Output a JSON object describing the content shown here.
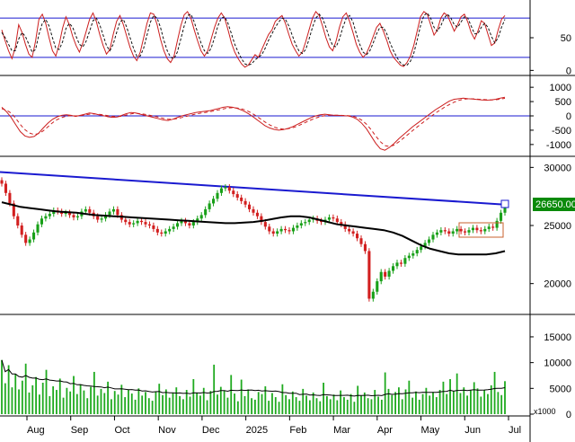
{
  "chart_data": [
    {
      "type": "line",
      "panel": "stochastic",
      "y_ticks": [
        "50",
        "0"
      ],
      "reference_lines": [
        80,
        20
      ],
      "ylim": [
        -5,
        105
      ],
      "series": [
        {
          "values": [
            62,
            45,
            30,
            18,
            35,
            70,
            58,
            40,
            25,
            20,
            45,
            78,
            86,
            72,
            50,
            30,
            22,
            40,
            65,
            82,
            70,
            52,
            38,
            28,
            42,
            60,
            78,
            88,
            75,
            55,
            38,
            25,
            32,
            55,
            75,
            84,
            70,
            52,
            35,
            22,
            15,
            28,
            50,
            72,
            88,
            86,
            70,
            48,
            30,
            18,
            12,
            22,
            45,
            68,
            85,
            90,
            80,
            62,
            45,
            30,
            22,
            30,
            48,
            66,
            80,
            88,
            80,
            62,
            42,
            28,
            18,
            10,
            5,
            8,
            16,
            24,
            20,
            32,
            44,
            55,
            62,
            75,
            80,
            84,
            72,
            55,
            40,
            30,
            22,
            28,
            44,
            62,
            80,
            90,
            84,
            68,
            50,
            36,
            30,
            45,
            66,
            82,
            88,
            75,
            58,
            40,
            28,
            20,
            26,
            38,
            52,
            66,
            72,
            60,
            46,
            30,
            20,
            14,
            8,
            6,
            12,
            22,
            38,
            60,
            82,
            90,
            86,
            70,
            54,
            62,
            80,
            88,
            84,
            72,
            60,
            70,
            82,
            86,
            74,
            58,
            48,
            60,
            76,
            72,
            55,
            38,
            42,
            62,
            78,
            84
          ]
        },
        {
          "values": [
            58,
            50,
            40,
            30,
            30,
            48,
            58,
            52,
            40,
            28,
            32,
            55,
            72,
            78,
            68,
            50,
            34,
            32,
            44,
            64,
            72,
            66,
            52,
            40,
            36,
            45,
            60,
            76,
            80,
            70,
            54,
            38,
            30,
            40,
            58,
            74,
            78,
            66,
            50,
            34,
            22,
            22,
            34,
            54,
            74,
            84,
            80,
            66,
            46,
            30,
            20,
            18,
            28,
            48,
            68,
            84,
            86,
            74,
            58,
            42,
            30,
            26,
            34,
            50,
            68,
            80,
            82,
            72,
            56,
            40,
            28,
            18,
            10,
            8,
            10,
            16,
            20,
            24,
            34,
            46,
            56,
            66,
            74,
            80,
            78,
            68,
            54,
            40,
            30,
            26,
            32,
            48,
            66,
            80,
            86,
            80,
            66,
            50,
            38,
            36,
            48,
            66,
            80,
            84,
            74,
            56,
            40,
            28,
            24,
            30,
            42,
            56,
            66,
            66,
            56,
            42,
            30,
            20,
            12,
            8,
            8,
            14,
            26,
            46,
            68,
            84,
            88,
            80,
            66,
            60,
            68,
            80,
            86,
            80,
            70,
            66,
            74,
            82,
            80,
            68,
            56,
            56,
            66,
            72,
            66,
            52,
            42,
            50,
            66,
            78
          ]
        }
      ]
    },
    {
      "type": "line",
      "panel": "macd",
      "y_ticks": [
        "1000",
        "500",
        "0",
        "-500",
        "-1000"
      ],
      "reference_lines": [
        0
      ],
      "ylim": [
        -1350,
        1350
      ],
      "series": [
        {
          "values": [
            300,
            150,
            -50,
            -300,
            -550,
            -700,
            -750,
            -720,
            -600,
            -420,
            -250,
            -120,
            -30,
            20,
            40,
            20,
            -20,
            20,
            60,
            100,
            80,
            40,
            10,
            -30,
            -50,
            -40,
            20,
            80,
            120,
            100,
            60,
            20,
            -20,
            -60,
            -100,
            -140,
            -160,
            -120,
            -60,
            0,
            40,
            80,
            120,
            140,
            160,
            180,
            220,
            260,
            300,
            320,
            300,
            260,
            200,
            120,
            20,
            -100,
            -220,
            -340,
            -420,
            -470,
            -500,
            -480,
            -440,
            -380,
            -300,
            -220,
            -140,
            -60,
            0,
            40,
            60,
            40,
            20,
            20,
            10,
            0,
            -40,
            -120,
            -260,
            -450,
            -700,
            -950,
            -1150,
            -1200,
            -1100,
            -960,
            -800,
            -660,
            -520,
            -380,
            -260,
            -140,
            -20,
            100,
            220,
            320,
            420,
            520,
            580,
            600,
            620,
            600,
            590,
            570,
            560,
            550,
            560,
            580,
            620,
            650
          ]
        },
        {
          "values": [
            250,
            200,
            100,
            -80,
            -300,
            -480,
            -600,
            -650,
            -620,
            -520,
            -380,
            -240,
            -130,
            -60,
            -10,
            10,
            0,
            5,
            30,
            60,
            70,
            55,
            35,
            10,
            -15,
            -30,
            -10,
            30,
            70,
            90,
            80,
            55,
            25,
            -10,
            -45,
            -85,
            -115,
            -120,
            -95,
            -55,
            -15,
            25,
            65,
            95,
            120,
            145,
            175,
            210,
            245,
            275,
            285,
            275,
            245,
            190,
            110,
            10,
            -100,
            -210,
            -310,
            -390,
            -440,
            -460,
            -450,
            -415,
            -360,
            -290,
            -215,
            -140,
            -75,
            -25,
            10,
            25,
            25,
            22,
            16,
            8,
            -10,
            -60,
            -150,
            -290,
            -480,
            -700,
            -900,
            -1040,
            -1070,
            -1020,
            -910,
            -780,
            -650,
            -515,
            -385,
            -260,
            -135,
            -15,
            100,
            210,
            310,
            400,
            480,
            540,
            580,
            595,
            595,
            585,
            575,
            565,
            560,
            565,
            585,
            615
          ]
        }
      ]
    },
    {
      "type": "candlestick",
      "panel": "price",
      "x_ticks": [
        "Aug",
        "Sep",
        "Oct",
        "Nov",
        "Dec",
        "2025",
        "Feb",
        "Mar",
        "Apr",
        "May",
        "Jun",
        "Jul"
      ],
      "y_ticks": [
        "30000",
        "25000",
        "20000"
      ],
      "last_price_label": "26650.00",
      "ylim": [
        17500,
        30800
      ],
      "trend_line": [
        29600,
        26800
      ],
      "close": [
        28600,
        27800,
        26900,
        25800,
        25000,
        24200,
        23500,
        23800,
        24400,
        25100,
        25600,
        25800,
        26000,
        26300,
        26200,
        26000,
        26100,
        25900,
        25700,
        25800,
        26200,
        26400,
        26100,
        25800,
        25500,
        25600,
        25900,
        26200,
        26400,
        25900,
        25500,
        25300,
        25100,
        25200,
        25400,
        25300,
        25100,
        25000,
        24700,
        24400,
        24300,
        24500,
        24700,
        24900,
        25200,
        25400,
        25200,
        25000,
        25300,
        25600,
        25900,
        26400,
        26900,
        27300,
        27800,
        28200,
        28300,
        28000,
        27700,
        27400,
        27100,
        26800,
        26400,
        26100,
        25800,
        25300,
        24900,
        24500,
        24300,
        24500,
        24700,
        24600,
        24500,
        24800,
        25000,
        25200,
        25300,
        25500,
        25600,
        25400,
        25300,
        25500,
        25700,
        25600,
        25300,
        25100,
        24700,
        24500,
        24300,
        23900,
        23400,
        22800,
        18700,
        19300,
        20200,
        21000,
        20600,
        21100,
        21500,
        21800,
        21700,
        22200,
        22400,
        22600,
        22900,
        23200,
        23500,
        23800,
        24200,
        24400,
        24600,
        24500,
        24300,
        24500,
        24700,
        24500,
        24400,
        24600,
        24800,
        24600,
        24500,
        24700,
        24900,
        24800,
        25400,
        26100,
        26650
      ],
      "moving_average": [
        27000,
        26800,
        26600,
        26500,
        26400,
        26300,
        26200,
        26150,
        26100,
        26000,
        25900,
        25850,
        25800,
        25750,
        25700,
        25650,
        25600,
        25550,
        25500,
        25450,
        25400,
        25350,
        25300,
        25250,
        25200,
        25200,
        25250,
        25300,
        25400,
        25550,
        25700,
        25800,
        25800,
        25700,
        25500,
        25300,
        25100,
        25000,
        24900,
        24800,
        24700,
        24600,
        24400,
        24100,
        23700,
        23300,
        23000,
        22800,
        22600,
        22500,
        22500,
        22500,
        22500,
        22600,
        22800
      ]
    },
    {
      "type": "bar",
      "panel": "volume",
      "y_ticks": [
        "15000",
        "10000",
        "5000",
        "0"
      ],
      "unit_label": "x1000",
      "ylim": [
        0,
        19000
      ],
      "values": [
        10500,
        6000,
        9500,
        5200,
        7800,
        4800,
        6500,
        9800,
        4200,
        5600,
        7200,
        3800,
        6100,
        8600,
        3500,
        5400,
        4700,
        6900,
        3200,
        5100,
        4400,
        7400,
        3900,
        5800,
        4600,
        3100,
        5300,
        8200,
        3600,
        4900,
        4100,
        6300,
        2900,
        4500,
        3800,
        5700,
        3300,
        4700,
        4000,
        2800,
        5000,
        3600,
        4300,
        3100,
        2600,
        4400,
        5900,
        3700,
        4800,
        3200,
        4100,
        5200,
        3500,
        2900,
        4700,
        3400,
        6800,
        4200,
        3600,
        5100,
        2700,
        4500,
        9600,
        3800,
        5300,
        4600,
        3200,
        7600,
        4000,
        2500,
        6700,
        3500,
        4800,
        3100,
        2800,
        4300,
        3900,
        5400,
        2600,
        4100,
        3300,
        2400,
        5800,
        3700,
        2900,
        4400,
        3300,
        2600,
        4900,
        3600,
        2700,
        4200,
        3100,
        2500,
        6100,
        3500,
        2900,
        3800,
        2700,
        4600,
        3300,
        2800,
        3900,
        2400,
        5500,
        3600,
        4200,
        3100,
        2900,
        4700,
        3400,
        2800,
        8100,
        4900,
        3700,
        4300,
        5200,
        2900,
        4800,
        6500,
        3200,
        4400,
        2800,
        3900,
        5100,
        3600,
        4300,
        3300,
        4700,
        6300,
        3900,
        6800,
        4500,
        7900,
        4100,
        5200,
        3600,
        4600,
        6200,
        5000,
        3400,
        4700,
        3900,
        5600,
        8200,
        4300,
        3700,
        6400
      ]
    }
  ]
}
